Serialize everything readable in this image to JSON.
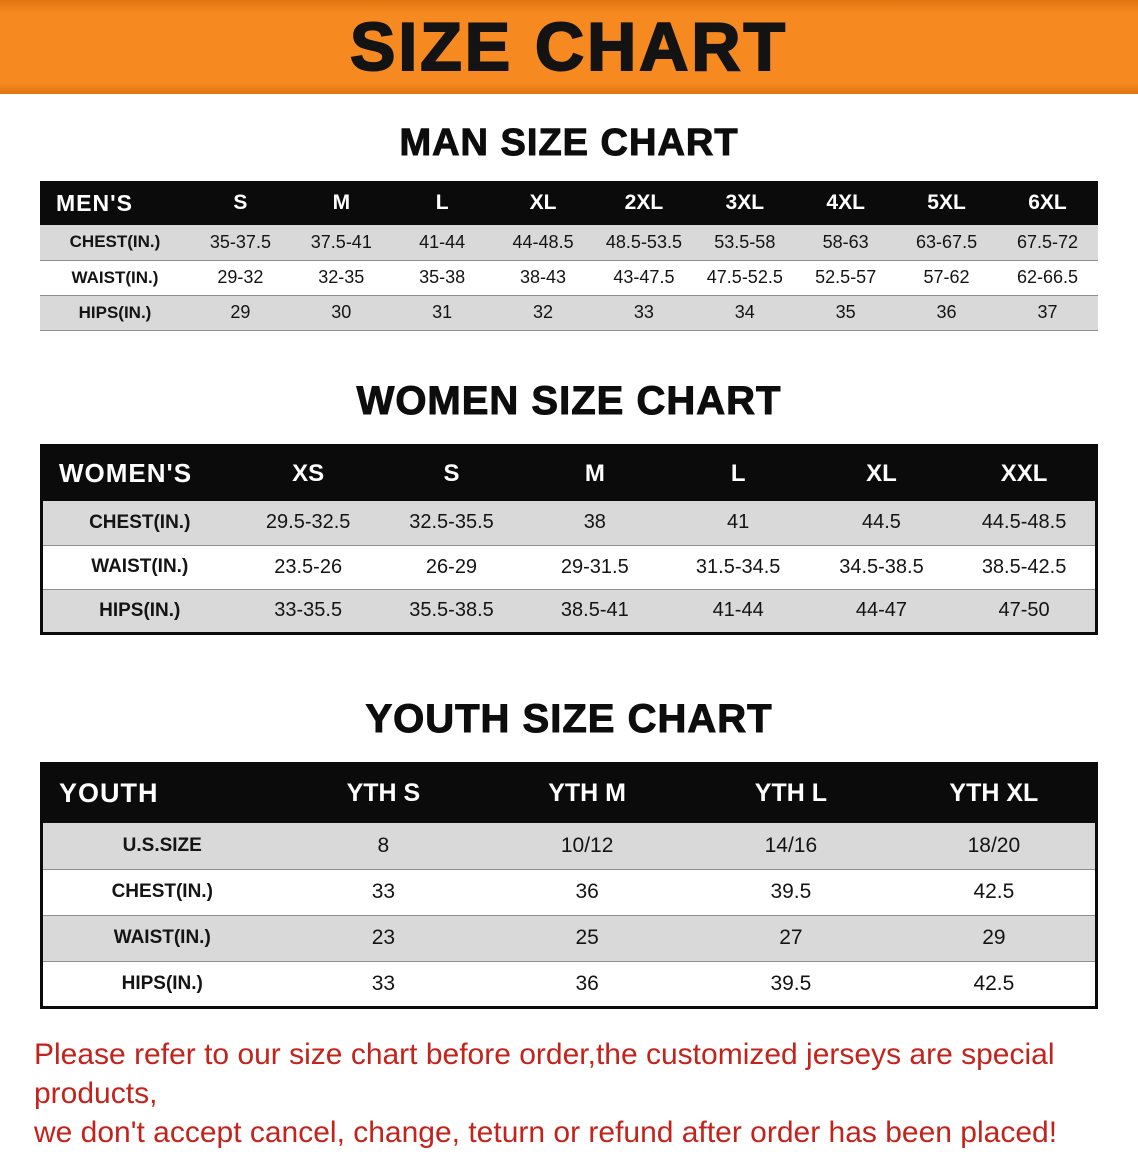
{
  "banner": {
    "title": "SIZE CHART"
  },
  "colors": {
    "banner_bg": "#f6891f",
    "header_bar": "#0b0b0b",
    "row_shade": "#d9d9d9",
    "notice_red": "#c4231b"
  },
  "sections": [
    {
      "heading": "MAN SIZE CHART",
      "table": {
        "corner": "MEN'S",
        "columns": [
          "S",
          "M",
          "L",
          "XL",
          "2XL",
          "3XL",
          "4XL",
          "5XL",
          "6XL"
        ],
        "rows": [
          {
            "label": "CHEST(IN.)",
            "values": [
              "35-37.5",
              "37.5-41",
              "41-44",
              "44-48.5",
              "48.5-53.5",
              "53.5-58",
              "58-63",
              "63-67.5",
              "67.5-72"
            ]
          },
          {
            "label": "WAIST(IN.)",
            "values": [
              "29-32",
              "32-35",
              "35-38",
              "38-43",
              "43-47.5",
              "47.5-52.5",
              "52.5-57",
              "57-62",
              "62-66.5"
            ]
          },
          {
            "label": "HIPS(IN.)",
            "values": [
              "29",
              "30",
              "31",
              "32",
              "33",
              "34",
              "35",
              "36",
              "37"
            ]
          }
        ]
      }
    },
    {
      "heading": "WOMEN SIZE CHART",
      "table": {
        "corner": "WOMEN'S",
        "columns": [
          "XS",
          "S",
          "M",
          "L",
          "XL",
          "XXL"
        ],
        "rows": [
          {
            "label": "CHEST(IN.)",
            "values": [
              "29.5-32.5",
              "32.5-35.5",
              "38",
              "41",
              "44.5",
              "44.5-48.5"
            ]
          },
          {
            "label": "WAIST(IN.)",
            "values": [
              "23.5-26",
              "26-29",
              "29-31.5",
              "31.5-34.5",
              "34.5-38.5",
              "38.5-42.5"
            ]
          },
          {
            "label": "HIPS(IN.)",
            "values": [
              "33-35.5",
              "35.5-38.5",
              "38.5-41",
              "41-44",
              "44-47",
              "47-50"
            ]
          }
        ]
      }
    },
    {
      "heading": "YOUTH SIZE CHART",
      "table": {
        "corner": "YOUTH",
        "columns": [
          "YTH S",
          "YTH M",
          "YTH L",
          "YTH XL"
        ],
        "rows": [
          {
            "label": "U.S.SIZE",
            "values": [
              "8",
              "10/12",
              "14/16",
              "18/20"
            ]
          },
          {
            "label": "CHEST(IN.)",
            "values": [
              "33",
              "36",
              "39.5",
              "42.5"
            ]
          },
          {
            "label": "WAIST(IN.)",
            "values": [
              "23",
              "25",
              "27",
              "29"
            ]
          },
          {
            "label": "HIPS(IN.)",
            "values": [
              "33",
              "36",
              "39.5",
              "42.5"
            ]
          }
        ]
      }
    }
  ],
  "footer": {
    "line1": "Please refer to our size chart before order,the customized jerseys are special products,",
    "line2": "we don't accept cancel, change, teturn or refund after order has been placed!"
  }
}
